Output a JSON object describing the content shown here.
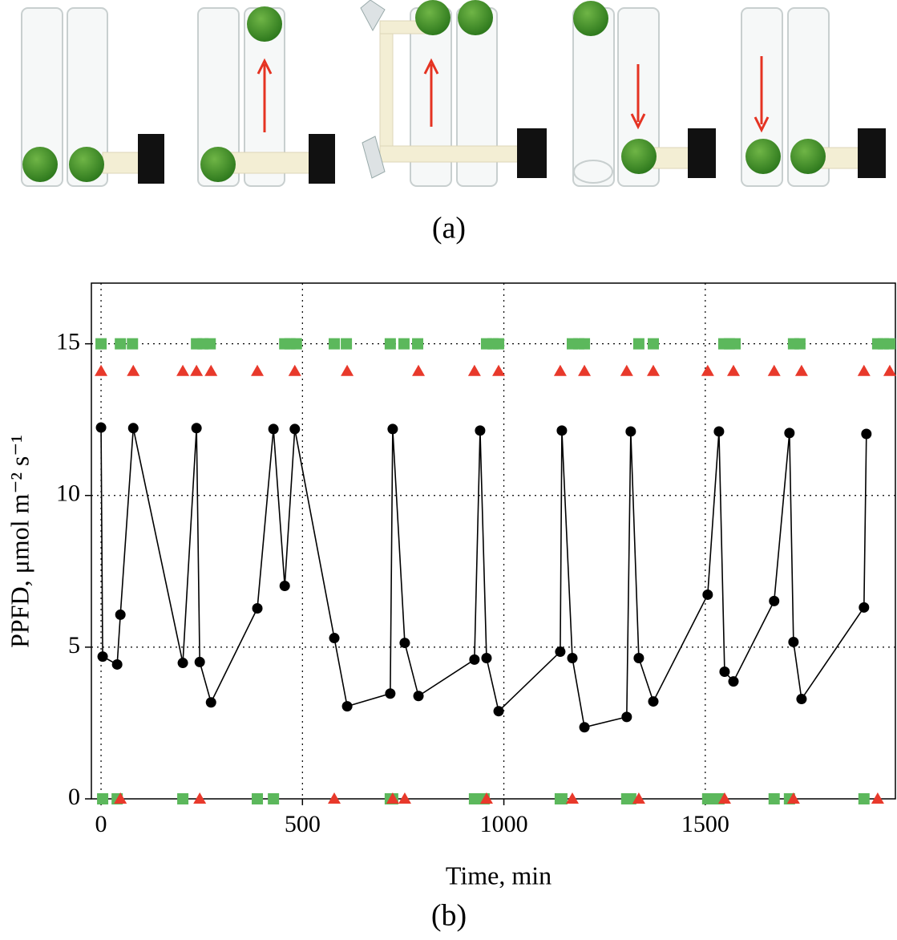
{
  "figure_a": {
    "caption": "(a)"
  },
  "chart_data": {
    "type": "line",
    "caption": "(b)",
    "xlabel": "Time, min",
    "ylabel": "PPFD, μmol m⁻² s⁻¹",
    "xlim": [
      -24,
      1972
    ],
    "ylim": [
      0,
      17
    ],
    "xticks": [
      0,
      500,
      1000,
      1500
    ],
    "yticks": [
      0,
      5,
      10,
      15
    ],
    "grid": true,
    "series": [
      {
        "type": "line",
        "marker": "circle",
        "color": "#000000",
        "x": [
          0,
          4,
          40,
          48,
          80,
          203,
          237,
          245,
          273,
          388,
          428,
          456,
          481,
          579,
          611,
          718,
          724,
          754,
          788,
          927,
          941,
          957,
          987,
          1140,
          1144,
          1170,
          1200,
          1305,
          1315,
          1335,
          1371,
          1506,
          1534,
          1548,
          1570,
          1671,
          1709,
          1719,
          1739,
          1894,
          1900
        ],
        "values": [
          12.24,
          4.69,
          4.43,
          6.07,
          12.22,
          4.48,
          12.22,
          4.51,
          3.18,
          6.28,
          12.19,
          7.02,
          12.19,
          5.3,
          3.05,
          3.47,
          12.19,
          5.14,
          3.39,
          4.59,
          12.14,
          4.64,
          2.89,
          4.85,
          12.14,
          4.64,
          2.36,
          2.7,
          12.11,
          4.64,
          3.21,
          6.73,
          12.11,
          4.19,
          3.87,
          6.52,
          12.06,
          5.17,
          3.29,
          6.31,
          12.03
        ]
      },
      {
        "type": "scatter",
        "marker": "square",
        "color": "#5cb85c",
        "x": [
          0,
          48,
          78,
          237,
          253,
          271,
          456,
          469,
          485,
          579,
          609,
          718,
          752,
          786,
          957,
          973,
          987,
          1170,
          1186,
          1200,
          1335,
          1371,
          1546,
          1560,
          1574,
          1719,
          1735,
          1928,
          1942,
          1958
        ],
        "values": [
          15,
          15,
          15,
          15,
          15,
          15,
          15,
          15,
          15,
          15,
          15,
          15,
          15,
          15,
          15,
          15,
          15,
          15,
          15,
          15,
          15,
          15,
          15,
          15,
          15,
          15,
          15,
          15,
          15,
          15
        ]
      },
      {
        "type": "scatter",
        "marker": "triangle",
        "color": "#e8392b",
        "x": [
          0,
          80,
          203,
          237,
          273,
          388,
          481,
          611,
          788,
          927,
          987,
          1140,
          1200,
          1305,
          1371,
          1506,
          1570,
          1671,
          1739,
          1894,
          1958
        ],
        "values": [
          14.1,
          14.1,
          14.1,
          14.1,
          14.1,
          14.1,
          14.1,
          14.1,
          14.1,
          14.1,
          14.1,
          14.1,
          14.1,
          14.1,
          14.1,
          14.1,
          14.1,
          14.1,
          14.1,
          14.1,
          14.1
        ]
      },
      {
        "type": "scatter",
        "marker": "square",
        "color": "#5cb85c",
        "x": [
          4,
          40,
          203,
          388,
          428,
          718,
          724,
          927,
          941,
          951,
          1140,
          1144,
          1305,
          1315,
          1506,
          1520,
          1534,
          1671,
          1709,
          1894
        ],
        "values": [
          0,
          0,
          0,
          0,
          0,
          0,
          0,
          0,
          0,
          0,
          0,
          0,
          0,
          0,
          0,
          0,
          0,
          0,
          0,
          0
        ]
      },
      {
        "type": "scatter",
        "marker": "triangle",
        "color": "#e8392b",
        "x": [
          48,
          245,
          579,
          724,
          754,
          957,
          1170,
          1335,
          1548,
          1719,
          1928
        ],
        "values": [
          0,
          0,
          0,
          0,
          0,
          0,
          0,
          0,
          0,
          0,
          0
        ]
      }
    ]
  }
}
